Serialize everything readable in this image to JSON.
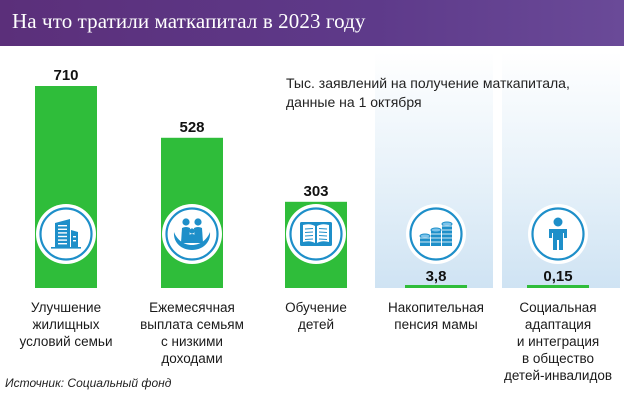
{
  "header": {
    "title": "На что тратили маткапитал в 2023 году"
  },
  "subtitle_lines": [
    "Тыс. заявлений на получение маткапитала,",
    "данные на 1 октября"
  ],
  "source": "Источник: Социальный фонд",
  "colors": {
    "header": "#5b2f7a",
    "bar": "#2fbd3a",
    "icon_ring": "#1e8fc9",
    "column_bg": "#dbeaf6"
  },
  "chart_data": {
    "type": "bar",
    "categories": [
      [
        "Улучшение",
        "жилищных",
        "условий семьи"
      ],
      [
        "Ежемесячная",
        "выплата семьям",
        "с низкими",
        "доходами"
      ],
      [
        "Обучение",
        "детей"
      ],
      [
        "Накопительная",
        "пенсия мамы"
      ],
      [
        "Социальная",
        "адаптация",
        "и интеграция",
        "в общество",
        "детей-инвалидов"
      ]
    ],
    "values": [
      710,
      528,
      303,
      3.8,
      0.15
    ],
    "value_labels": [
      "710",
      "528",
      "303",
      "3,8",
      "0,15"
    ],
    "icons": [
      "building-icon",
      "family-hands-icon",
      "book-icon",
      "coin-stacks-icon",
      "child-icon"
    ],
    "ylim": [
      0,
      710
    ],
    "title": "",
    "xlabel": "",
    "ylabel": ""
  }
}
